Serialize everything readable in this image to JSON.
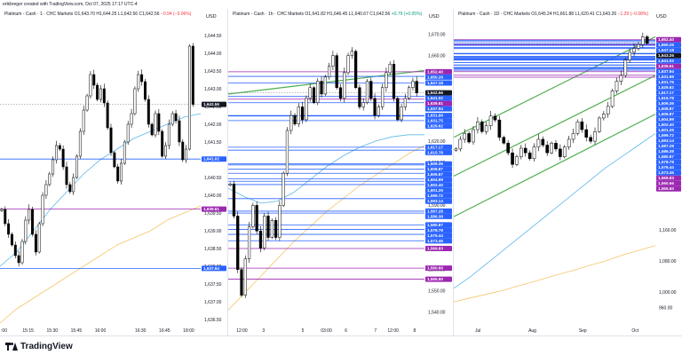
{
  "header": {
    "credit": "erikbreger created with TradingView.com, Oct 07, 2025 17:17 UTC-4"
  },
  "footer": {
    "brand": "TradingView"
  },
  "colors": {
    "up": "#000000",
    "down": "#000000",
    "ma_fast": "#5bb7e8",
    "ma_slow": "#f5c46b",
    "support": "#2962ff",
    "resistance": "#9c27b0",
    "channel": "#4caf50",
    "last": "#131722"
  },
  "panels": [
    {
      "title": "Platinum - Cash · 1 · CHC Markets",
      "ohlc": "O1,643.70  H1,644.25  L1,642.56  C1,642.56",
      "change": "−0.94 (−0.06%)",
      "change_dir": "neg",
      "currency": "USD",
      "chart_data": {
        "type": "candlestick",
        "ylim": [
          1636.4,
          1644.9
        ],
        "yticks": [
          "1,644.50",
          "1,644.00",
          "1,643.50",
          "1,643.00",
          "1,642.50",
          "1,642.00",
          "1,641.50",
          "1,641.00",
          "1,640.50",
          "1,640.00",
          "1,639.50",
          "1,639.00",
          "1,638.50",
          "1,638.00",
          "1,637.50",
          "1,637.00",
          "1,636.50"
        ],
        "ytick_values": [
          1644.5,
          1644.0,
          1643.5,
          1643.0,
          1642.5,
          1642.0,
          1641.5,
          1641.0,
          1640.5,
          1640.0,
          1639.5,
          1639.0,
          1638.5,
          1638.0,
          1637.5,
          1637.0,
          1636.5
        ],
        "xticks": [
          ":00",
          "15:15",
          "15:30",
          "15:45",
          "16:00",
          "16:30",
          "16:45",
          "18:00"
        ],
        "xtick_pos": [
          0.02,
          0.14,
          0.26,
          0.38,
          0.5,
          0.7,
          0.82,
          0.94
        ],
        "closes": [
          1639.6,
          1639.2,
          1638.9,
          1638.6,
          1638.3,
          1638.1,
          1638.7,
          1639.3,
          1639.6,
          1638.9,
          1638.4,
          1639.2,
          1640.0,
          1640.3,
          1640.6,
          1641.0,
          1641.4,
          1641.3,
          1640.8,
          1640.3,
          1640.1,
          1640.5,
          1641.1,
          1641.8,
          1642.4,
          1642.8,
          1643.4,
          1643.1,
          1642.7,
          1643.0,
          1642.6,
          1641.9,
          1641.2,
          1640.8,
          1640.4,
          1640.9,
          1641.5,
          1642.0,
          1642.3,
          1643.0,
          1643.4,
          1643.2,
          1642.7,
          1642.0,
          1641.7,
          1642.3,
          1641.8,
          1641.1,
          1641.4,
          1642.0,
          1642.3,
          1642.1,
          1641.5,
          1641.0,
          1641.3,
          1644.2,
          1642.56
        ],
        "ma_fast": [
          1638.0,
          1638.4,
          1639.0,
          1639.6,
          1640.1,
          1640.6,
          1641.0,
          1641.3,
          1641.6,
          1641.8,
          1642.0,
          1642.2,
          1642.3
        ],
        "ma_slow": [
          1636.4,
          1636.8,
          1637.1,
          1637.4,
          1637.7,
          1638.0,
          1638.3,
          1638.6,
          1638.8,
          1639.0,
          1639.3,
          1639.5,
          1639.7
        ],
        "levels": [
          {
            "value": 1641.02,
            "label": "1,641.02",
            "kind": "support"
          },
          {
            "value": 1639.61,
            "label": "1,639.61",
            "kind": "resistance"
          },
          {
            "value": 1637.94,
            "label": "1,637.94",
            "kind": "support"
          },
          {
            "value": 1642.56,
            "label": "1,642.56",
            "kind": "last"
          }
        ]
      }
    },
    {
      "title": "Platinum - Cash · 1h · CHC Markets",
      "ohlc": "O1,641.82  H1,646.45  L1,640.67  C1,642.56",
      "change": "+0.79 (+0.05%)",
      "change_dir": "pos",
      "currency": "USD",
      "chart_data": {
        "type": "candlestick",
        "ylim": [
          1535,
          1676
        ],
        "yticks": [
          "1,670.00",
          "1,660.00",
          "1,650.00",
          "1,640.00",
          "1,630.00",
          "1,620.00",
          "1,610.00",
          "1,600.00",
          "1,590.00",
          "1,580.00",
          "1,570.00",
          "1,560.00",
          "1,550.00",
          "1,540.00"
        ],
        "ytick_values": [
          1670,
          1660,
          1650,
          1640,
          1630,
          1620,
          1610,
          1600,
          1590,
          1580,
          1570,
          1560,
          1550,
          1540
        ],
        "xticks": [
          "12:00",
          "3",
          "5",
          "03:00",
          "6",
          "7",
          "12:00",
          "8"
        ],
        "xtick_pos": [
          0.07,
          0.18,
          0.38,
          0.5,
          0.6,
          0.75,
          0.84,
          0.95
        ],
        "closes": [
          1600,
          1585,
          1560,
          1548,
          1565,
          1580,
          1590,
          1578,
          1570,
          1585,
          1575,
          1583,
          1575,
          1590,
          1605,
          1625,
          1632,
          1628,
          1636,
          1630,
          1640,
          1645,
          1638,
          1648,
          1642,
          1650,
          1655,
          1660,
          1645,
          1640,
          1652,
          1660,
          1662,
          1645,
          1636,
          1638,
          1648,
          1640,
          1632,
          1636,
          1645,
          1652,
          1656,
          1640,
          1630,
          1636,
          1640,
          1645,
          1648,
          1642.56
        ],
        "ma_fast": [
          1598,
          1594,
          1591,
          1592,
          1596,
          1602,
          1608,
          1613,
          1617,
          1620,
          1622,
          1623,
          1623
        ],
        "ma_slow": [
          1541,
          1549,
          1557,
          1565,
          1573,
          1580,
          1587,
          1593,
          1599,
          1604,
          1609,
          1614,
          1618
        ],
        "trendline": [
          [
            0.0,
            1642
          ],
          [
            1.0,
            1653
          ]
        ],
        "levels": [
          {
            "value": 1652.4,
            "label": "1,652.40",
            "kind": "resistance"
          },
          {
            "value": 1650.26,
            "label": "1,650.26",
            "kind": "support"
          },
          {
            "value": 1647.18,
            "label": "1,647.18",
            "kind": "support"
          },
          {
            "value": 1642.56,
            "label": "1,642.56",
            "kind": "last"
          },
          {
            "value": 1641.02,
            "label": "1,641.02",
            "kind": "support"
          },
          {
            "value": 1639.61,
            "label": "1,639.61",
            "kind": "resistance"
          },
          {
            "value": 1637.94,
            "label": "1,637.94",
            "kind": "support"
          },
          {
            "value": 1631.75,
            "label": "1,631.75",
            "kind": "support"
          },
          {
            "value": 1631.99,
            "label": "1,631.99",
            "kind": "support"
          },
          {
            "value": 1629.62,
            "label": "1,629.62",
            "kind": "support"
          },
          {
            "value": 1617.17,
            "label": "1,617.17",
            "kind": "support"
          },
          {
            "value": 1615.78,
            "label": "1,615.78",
            "kind": "support"
          },
          {
            "value": 1609.36,
            "label": "1,609.36",
            "kind": "support"
          },
          {
            "value": 1608.87,
            "label": "1,608.87",
            "kind": "support"
          },
          {
            "value": 1606.87,
            "label": "1,606.87",
            "kind": "support"
          },
          {
            "value": 1604.99,
            "label": "1,604.99",
            "kind": "support"
          },
          {
            "value": 1602.4,
            "label": "1,602.40",
            "kind": "support"
          },
          {
            "value": 1601.26,
            "label": "1,601.26",
            "kind": "support"
          },
          {
            "value": 1599.72,
            "label": "1,599.72",
            "kind": "support"
          },
          {
            "value": 1593.14,
            "label": "1,593.14",
            "kind": "support"
          },
          {
            "value": 1587.28,
            "label": "1,587.28",
            "kind": "support"
          },
          {
            "value": 1586.38,
            "label": "1,586.38",
            "kind": "support"
          },
          {
            "value": 1580.87,
            "label": "1,580.87",
            "kind": "support"
          },
          {
            "value": 1578.78,
            "label": "1,578.78",
            "kind": "support"
          },
          {
            "value": 1576.44,
            "label": "1,576.44",
            "kind": "support"
          },
          {
            "value": 1573.46,
            "label": "1,573.46",
            "kind": "support"
          },
          {
            "value": 1569.83,
            "label": "1,569.83",
            "kind": "resistance"
          },
          {
            "value": 1560.66,
            "label": "1,560.66",
            "kind": "resistance"
          },
          {
            "value": 1555.5,
            "label": "1,555.50",
            "kind": "resistance"
          }
        ]
      }
    },
    {
      "title": "Platinum - Cash · 1D · CHC Markets",
      "ohlc": "O1,645.24  H1,661.88  L1,620.41  C1,643.26",
      "change": "−1.29 (−0.08%)",
      "change_dir": "neg",
      "currency": "USD",
      "chart_data": {
        "type": "candlestick",
        "ylim": [
          920,
          1700
        ],
        "yticks": [
          "1,652.40",
          "1,560.66",
          "1,160.00",
          "1,080.00",
          "1,000.00",
          "960.00"
        ],
        "ytick_values": [
          1652.4,
          1560.66,
          1160,
          1080,
          1000,
          960
        ],
        "xticks": [
          "Jul",
          "Aug",
          "Sep",
          "Oct"
        ],
        "xtick_pos": [
          0.12,
          0.39,
          0.64,
          0.9
        ],
        "closes": [
          1370,
          1395,
          1410,
          1388,
          1420,
          1440,
          1415,
          1430,
          1455,
          1445,
          1400,
          1385,
          1360,
          1330,
          1350,
          1372,
          1360,
          1345,
          1375,
          1395,
          1380,
          1360,
          1385,
          1370,
          1350,
          1375,
          1395,
          1410,
          1440,
          1420,
          1400,
          1390,
          1415,
          1450,
          1460,
          1480,
          1520,
          1545,
          1560,
          1600,
          1620,
          1630,
          1640,
          1660,
          1643.26
        ],
        "ma_fast": [
          1010,
          1040,
          1075,
          1110,
          1145,
          1180,
          1215,
          1250,
          1285,
          1320,
          1350,
          1380,
          1410
        ],
        "ma_slow": [
          975,
          985,
          995,
          1005,
          1018,
          1030,
          1043,
          1055,
          1068,
          1080,
          1095,
          1108,
          1120
        ],
        "channel": [
          [
            [
              0.0,
              1400
            ],
            [
              1.0,
              1660
            ]
          ],
          [
            [
              0.0,
              1300
            ],
            [
              1.0,
              1560
            ]
          ],
          [
            [
              0.0,
              1195
            ],
            [
              1.0,
              1460
            ]
          ]
        ],
        "levels": [
          {
            "value": 1652.4,
            "label": "1,652.40",
            "kind": "resistance"
          },
          {
            "value": 1650.26,
            "label": "1,650.26",
            "kind": "support"
          },
          {
            "value": 1647.18,
            "label": "1,647.18",
            "kind": "support"
          },
          {
            "value": 1643.26,
            "label": "1,643.26",
            "kind": "last"
          },
          {
            "value": 1641.02,
            "label": "1,641.02",
            "kind": "support"
          },
          {
            "value": 1639.61,
            "label": "1,639.61",
            "kind": "resistance"
          },
          {
            "value": 1637.94,
            "label": "1,637.94",
            "kind": "support"
          },
          {
            "value": 1631.75,
            "label": "1,631.75",
            "kind": "support"
          },
          {
            "value": 1631.99,
            "label": "1,631.99",
            "kind": "support"
          },
          {
            "value": 1629.62,
            "label": "1,629.62",
            "kind": "support"
          },
          {
            "value": 1617.17,
            "label": "1,617.17",
            "kind": "support"
          },
          {
            "value": 1615.78,
            "label": "1,615.78",
            "kind": "support"
          },
          {
            "value": 1609.36,
            "label": "1,609.36",
            "kind": "support"
          },
          {
            "value": 1608.87,
            "label": "1,608.87",
            "kind": "support"
          },
          {
            "value": 1606.87,
            "label": "1,606.87",
            "kind": "support"
          },
          {
            "value": 1604.99,
            "label": "1,604.99",
            "kind": "support"
          },
          {
            "value": 1602.4,
            "label": "1,602.40",
            "kind": "support"
          },
          {
            "value": 1601.26,
            "label": "1,601.26",
            "kind": "support"
          },
          {
            "value": 1599.72,
            "label": "1,599.72",
            "kind": "support"
          },
          {
            "value": 1593.14,
            "label": "1,593.14",
            "kind": "support"
          },
          {
            "value": 1587.28,
            "label": "1,587.28",
            "kind": "support"
          },
          {
            "value": 1586.38,
            "label": "1,586.38",
            "kind": "support"
          },
          {
            "value": 1580.87,
            "label": "1,580.87",
            "kind": "support"
          },
          {
            "value": 1578.78,
            "label": "1,578.78",
            "kind": "support"
          },
          {
            "value": 1576.44,
            "label": "1,576.44",
            "kind": "support"
          },
          {
            "value": 1573.46,
            "label": "1,573.46",
            "kind": "support"
          },
          {
            "value": 1569.83,
            "label": "1,569.83",
            "kind": "resistance"
          },
          {
            "value": 1560.66,
            "label": "1,560.66",
            "kind": "resistance"
          },
          {
            "value": 1555.5,
            "label": "1,555.50",
            "kind": "resistance"
          }
        ]
      }
    }
  ]
}
